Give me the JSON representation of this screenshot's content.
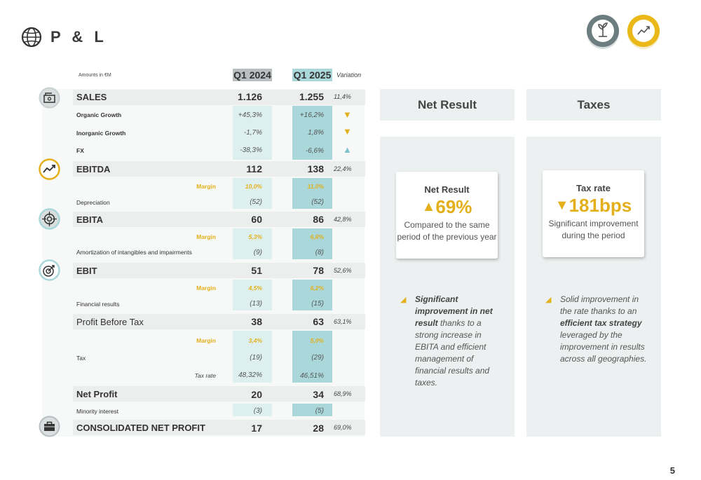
{
  "header": {
    "title": "P & L",
    "page_number": "5"
  },
  "table": {
    "amounts_note": "Amounts in €M",
    "col_q1_2024": "Q1 2024",
    "col_q1_2025": "Q1 2025",
    "col_variation": "Variation",
    "sales": {
      "label": "SALES",
      "q24": "1.126",
      "q25": "1.255",
      "var": "11,4%"
    },
    "organic": {
      "label": "Organic Growth",
      "q24": "+45,3%",
      "q25": "+16,2%",
      "trend": "down"
    },
    "inorganic": {
      "label": "Inorganic Growth",
      "q24": "-1,7%",
      "q25": "1,8%",
      "trend": "down"
    },
    "fx": {
      "label": "FX",
      "q24": "-38,3%",
      "q25": "-6,6%",
      "trend": "up"
    },
    "ebitda": {
      "label": "EBITDA",
      "q24": "112",
      "q25": "138",
      "var": "22,4%"
    },
    "ebitda_margin": {
      "label": "Margin",
      "q24": "10,0%",
      "q25": "11,0%"
    },
    "depreciation": {
      "label": "Depreciation",
      "q24": "(52)",
      "q25": "(52)"
    },
    "ebita": {
      "label": "EBITA",
      "q24": "60",
      "q25": "86",
      "var": "42,8%"
    },
    "ebita_margin": {
      "label": "Margin",
      "q24": "5,3%",
      "q25": "6,8%"
    },
    "amortization": {
      "label": "Amortization of intangibles and impairments",
      "q24": "(9)",
      "q25": "(8)"
    },
    "ebit": {
      "label": "EBIT",
      "q24": "51",
      "q25": "78",
      "var": "52,6%"
    },
    "ebit_margin": {
      "label": "Margin",
      "q24": "4,5%",
      "q25": "6,2%"
    },
    "financial": {
      "label": "Financial results",
      "q24": "(13)",
      "q25": "(15)"
    },
    "pbt": {
      "label": "Profit Before Tax",
      "q24": "38",
      "q25": "63",
      "var": "63,1%"
    },
    "pbt_margin": {
      "label": "Margin",
      "q24": "3,4%",
      "q25": "5,0%"
    },
    "tax": {
      "label": "Tax",
      "q24": "(19)",
      "q25": "(29)"
    },
    "taxrate": {
      "label": "Tax rate",
      "q24": "48,32%",
      "q25": "46,51%"
    },
    "netprofit": {
      "label": "Net Profit",
      "q24": "20",
      "q25": "34",
      "var": "68,9%"
    },
    "minority": {
      "label": "Minority interest",
      "q24": "(3)",
      "q25": "(5)"
    },
    "consolidated": {
      "label": "CONSOLIDATED NET PROFIT",
      "q24": "17",
      "q25": "28",
      "var": "69,0%"
    }
  },
  "net_result": {
    "header": "Net Result",
    "card_title": "Net Result",
    "arrow": "▲",
    "value": "69%",
    "subtitle": "Compared to the same period of the previous year",
    "note_bold": "Significant improvement in net result",
    "note_rest": " thanks to a strong increase in EBITA and efficient management of financial results and taxes."
  },
  "taxes": {
    "header": "Taxes",
    "card_title": "Tax rate",
    "arrow": "▼",
    "value": "181bps",
    "subtitle": "Significant improvement during the period",
    "note_pre": "Solid improvement in the rate thanks to an ",
    "note_bold": "efficient tax strategy",
    "note_rest": " leveraged by the improvement in results across all geographies."
  },
  "colors": {
    "accent_yellow": "#e3b01b",
    "teal": "#a9d7da",
    "grey": "#b9bfc1",
    "up_arrow": "#7cc4c9"
  }
}
